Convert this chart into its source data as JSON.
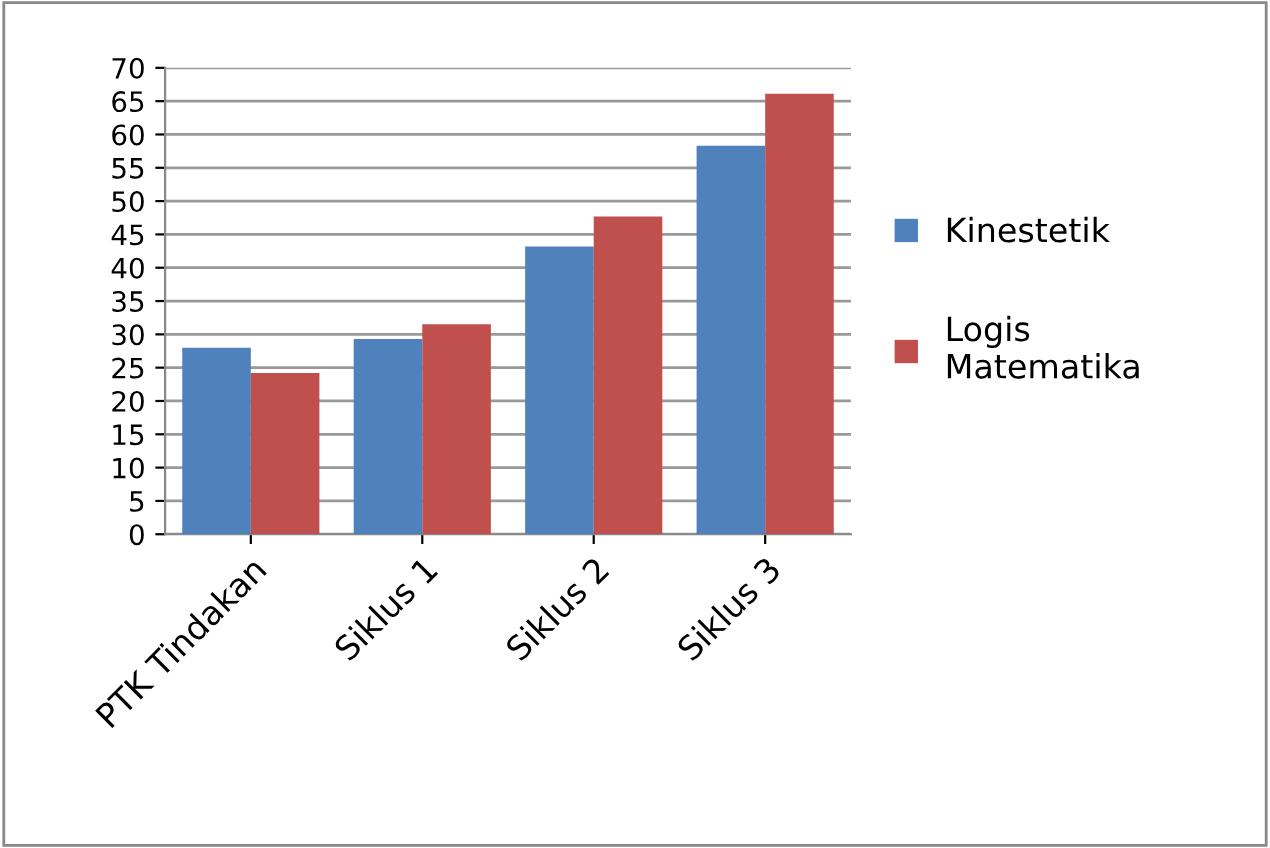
{
  "chart_data": {
    "type": "bar",
    "categories": [
      "PTK Tindakan",
      "Siklus 1",
      "Siklus 2",
      "Siklus 3"
    ],
    "series": [
      {
        "name": "Kinestetik",
        "color": "#4f81bd",
        "values": [
          28,
          29.3,
          43.2,
          58.3
        ]
      },
      {
        "name": "Logis\nMatematika",
        "color": "#c0504d",
        "values": [
          24.2,
          31.5,
          47.7,
          66.1
        ]
      }
    ],
    "ylim": [
      0,
      70
    ],
    "yticks": [
      0,
      5,
      10,
      15,
      20,
      25,
      30,
      35,
      40,
      45,
      50,
      55,
      60,
      65,
      70
    ],
    "grid": "y",
    "legend": "right"
  }
}
